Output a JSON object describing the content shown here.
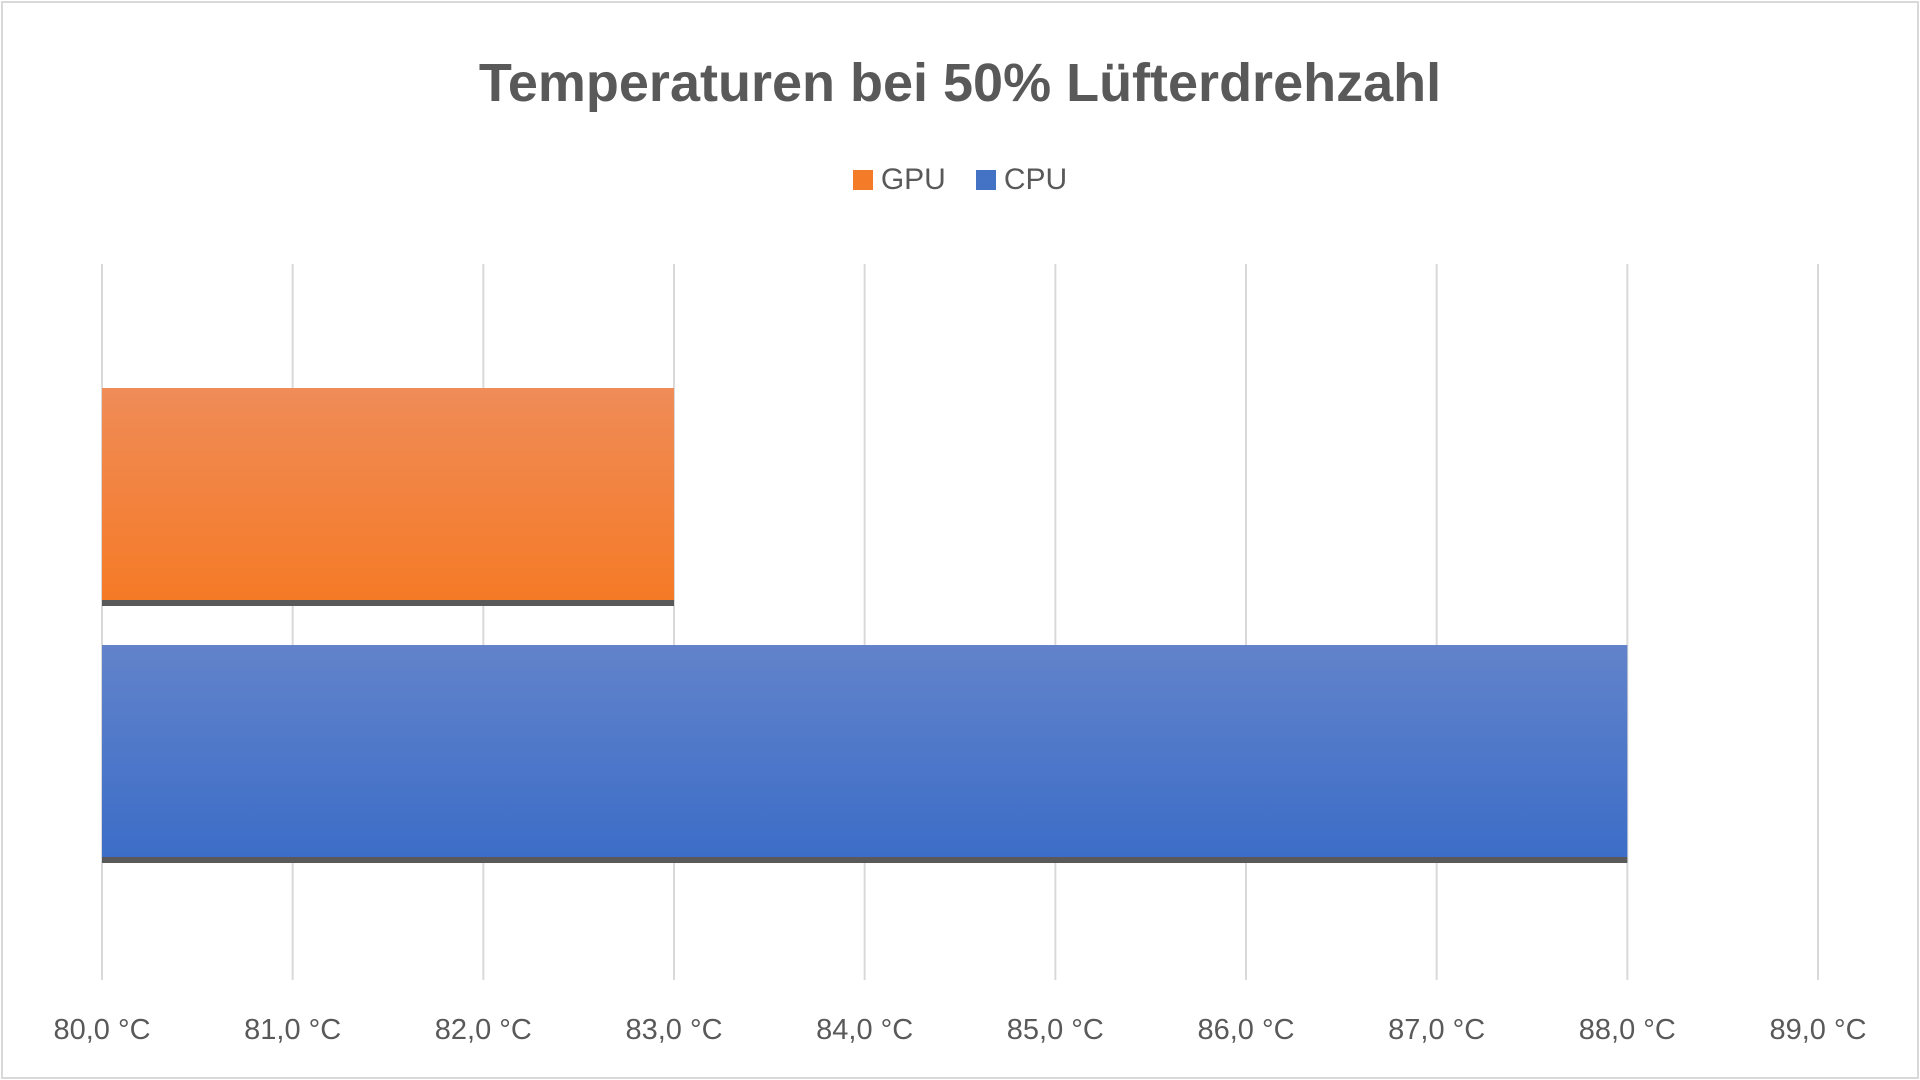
{
  "chart_data": {
    "type": "bar",
    "orientation": "horizontal",
    "title": "Temperaturen bei 50% Lüfterdrehzahl",
    "categories": [
      "GPU",
      "CPU"
    ],
    "series": [
      {
        "name": "GPU",
        "value": 83.0,
        "color": "#F47B27"
      },
      {
        "name": "CPU",
        "value": 88.0,
        "color": "#4472C4"
      }
    ],
    "xlim": [
      80,
      89
    ],
    "xticks": [
      80,
      81,
      82,
      83,
      84,
      85,
      86,
      87,
      88,
      89
    ],
    "xtick_labels": [
      "80,0 °C",
      "81,0 °C",
      "82,0 °C",
      "83,0 °C",
      "84,0 °C",
      "85,0 °C",
      "86,0 °C",
      "87,0 °C",
      "88,0 °C",
      "89,0 °C"
    ],
    "grid": true,
    "legend_position": "top",
    "legend": [
      "GPU",
      "CPU"
    ]
  }
}
